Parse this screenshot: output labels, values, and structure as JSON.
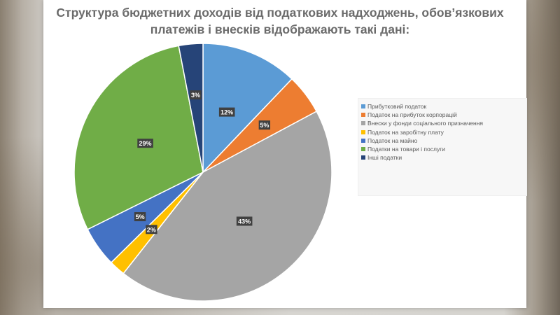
{
  "title": "Структура бюджетних доходів від податкових надходжень, обов’язкових платежів і внесків відображають такі дані:",
  "chart_data": {
    "type": "pie",
    "title": "Структура бюджетних доходів від податкових надходжень, обов’язкових платежів і внесків відображають такі дані:",
    "legend_position": "right",
    "slices": [
      {
        "name": "Прибутковий податок",
        "value": 12,
        "label": "12%",
        "color": "#5b9bd5"
      },
      {
        "name": "Податок на прибуток корпорацій",
        "value": 5,
        "label": "5%",
        "color": "#ed7d31"
      },
      {
        "name": "Внески у фонди соціального призначення",
        "value": 43,
        "label": "43%",
        "color": "#a5a5a5"
      },
      {
        "name": "Податок на заробітну плату",
        "value": 2,
        "label": "2%",
        "color": "#ffc000"
      },
      {
        "name": "Податок на майно",
        "value": 5,
        "label": "5%",
        "color": "#4472c4"
      },
      {
        "name": "Податки на товари і послуги",
        "value": 29,
        "label": "29%",
        "color": "#70ad47"
      },
      {
        "name": "Інші податки",
        "value": 3,
        "label": "3%",
        "color": "#264478"
      }
    ]
  }
}
